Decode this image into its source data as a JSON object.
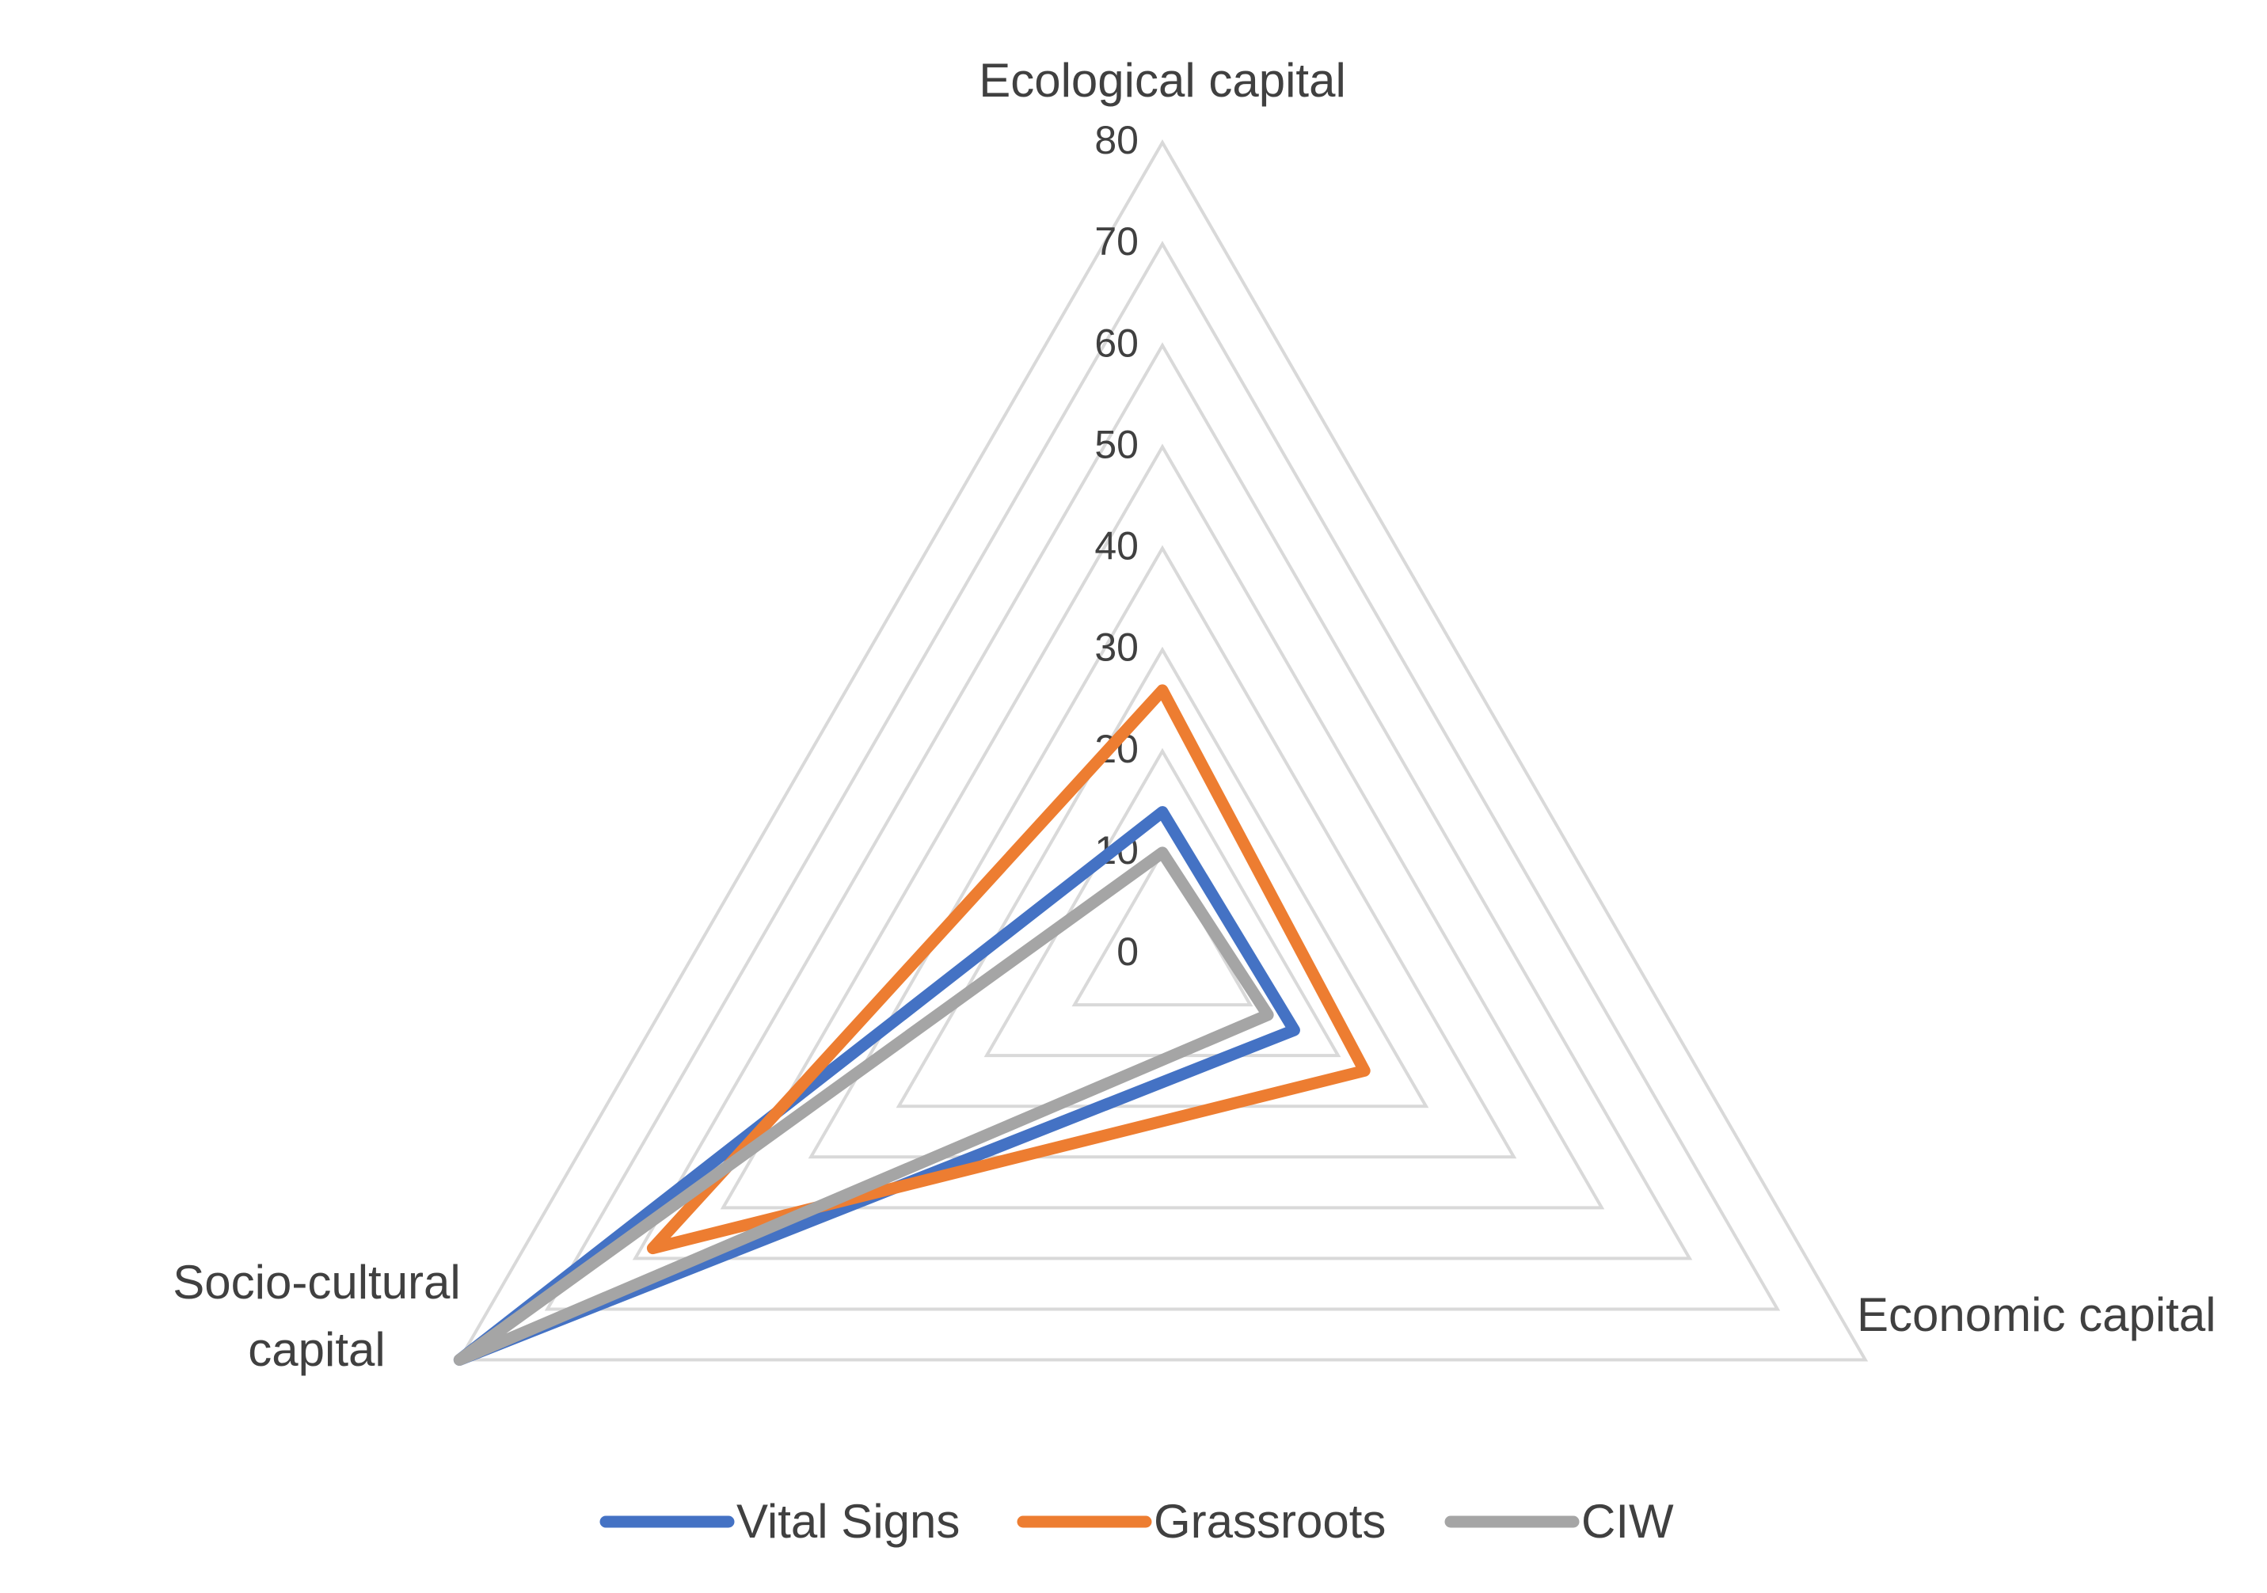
{
  "chart_data": {
    "type": "radar",
    "title": "",
    "axes": [
      "Ecological capital",
      "Economic capital",
      "Socio-cultural capital"
    ],
    "axis_label_lines": [
      [
        "Ecological capital"
      ],
      [
        "Economic capital"
      ],
      [
        "Socio-cultural",
        "capital"
      ]
    ],
    "ticks": [
      "0",
      "10",
      "20",
      "30",
      "40",
      "50",
      "60",
      "70",
      "80"
    ],
    "range": [
      0,
      80
    ],
    "grid": true,
    "legend_position": "bottom",
    "series": [
      {
        "name": "Vital Signs",
        "color": "#4472C4",
        "values": [
          14,
          15,
          80
        ]
      },
      {
        "name": "Grassroots",
        "color": "#ED7D31",
        "values": [
          26,
          23,
          58
        ]
      },
      {
        "name": "CIW",
        "color": "#A5A5A5",
        "values": [
          10,
          12,
          80
        ]
      }
    ]
  }
}
